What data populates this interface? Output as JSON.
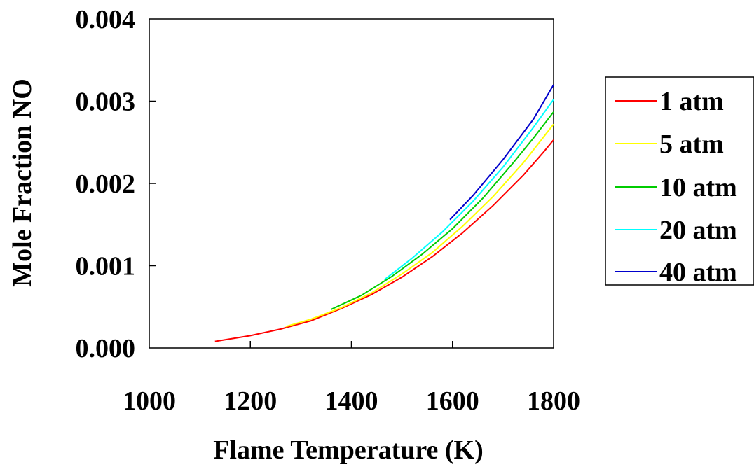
{
  "chart_data": {
    "type": "line",
    "title": "",
    "xlabel": "Flame Temperature (K)",
    "ylabel": "Mole Fraction NO",
    "xlim": [
      1000,
      1800
    ],
    "ylim": [
      0,
      0.004
    ],
    "xticks": [
      "1000",
      "1200",
      "1400",
      "1600",
      "1800"
    ],
    "yticks": [
      "0.000",
      "0.001",
      "0.002",
      "0.003",
      "0.004"
    ],
    "grid": false,
    "legend_position": "right",
    "series": [
      {
        "name": "1 atm",
        "color": "#ff0000",
        "x": [
          1130,
          1200,
          1260,
          1320,
          1380,
          1440,
          1500,
          1560,
          1620,
          1680,
          1740,
          1780,
          1800
        ],
        "y": [
          8e-05,
          0.00015,
          0.00023,
          0.00033,
          0.00048,
          0.00065,
          0.00086,
          0.00111,
          0.0014,
          0.00173,
          0.0021,
          0.00238,
          0.00253
        ]
      },
      {
        "name": "5 atm",
        "color": "#ffff00",
        "x": [
          1270,
          1320,
          1380,
          1440,
          1500,
          1560,
          1620,
          1680,
          1740,
          1800
        ],
        "y": [
          0.00026,
          0.00035,
          0.00049,
          0.00067,
          0.0009,
          0.00116,
          0.00148,
          0.00184,
          0.00225,
          0.00272
        ]
      },
      {
        "name": "10 atm",
        "color": "#00cc00",
        "x": [
          1360,
          1420,
          1480,
          1540,
          1600,
          1660,
          1720,
          1760,
          1800
        ],
        "y": [
          0.00047,
          0.00064,
          0.00087,
          0.00114,
          0.00145,
          0.00182,
          0.00225,
          0.00255,
          0.00287
        ]
      },
      {
        "name": "20 atm",
        "color": "#00ffff",
        "x": [
          1465,
          1520,
          1580,
          1640,
          1700,
          1760,
          1800
        ],
        "y": [
          0.00083,
          0.00109,
          0.00141,
          0.00178,
          0.0022,
          0.00268,
          0.00302
        ]
      },
      {
        "name": "40 atm",
        "color": "#0000cc",
        "x": [
          1595,
          1640,
          1700,
          1760,
          1800
        ],
        "y": [
          0.00156,
          0.00185,
          0.00229,
          0.00278,
          0.0032
        ]
      }
    ]
  }
}
